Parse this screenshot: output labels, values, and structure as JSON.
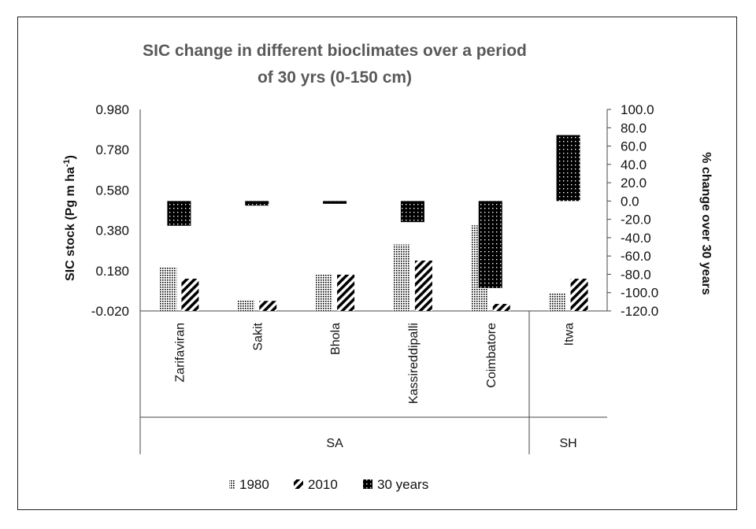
{
  "chart_data": {
    "type": "bar",
    "title_lines": [
      "SIC change in different bioclimates over a period",
      "of 30 yrs (0-150 cm)"
    ],
    "ylabel_left": "SIC stock (Pg m ha",
    "ylabel_left_sup": "-1",
    "ylabel_left_close": ")",
    "ylabel_right": "% change over 30 years",
    "left_axis": {
      "min": -0.02,
      "max": 0.98,
      "ticks": [
        "0.980",
        "0.780",
        "0.580",
        "0.380",
        "0.180",
        "-0.020"
      ],
      "tick_values": [
        0.98,
        0.78,
        0.58,
        0.38,
        0.18,
        -0.02
      ]
    },
    "right_axis": {
      "min": -120,
      "max": 100,
      "ticks": [
        "100.0",
        "80.0",
        "60.0",
        "40.0",
        "20.0",
        "0.0",
        "-20.0",
        "-40.0",
        "-60.0",
        "-80.0",
        "-100.0",
        "-120.0"
      ],
      "tick_values": [
        100,
        80,
        60,
        40,
        20,
        0,
        -20,
        -40,
        -60,
        -80,
        -100,
        -120
      ]
    },
    "categories": [
      "Zarifaviran",
      "Sakit",
      "Bhola",
      "Kassireddipalli",
      "Coimbatore",
      "Itwa"
    ],
    "groups": [
      {
        "label": "SA",
        "categories": [
          "Zarifaviran",
          "Sakit",
          "Bhola",
          "Kassireddipalli",
          "Coimbatore"
        ]
      },
      {
        "label": "SH",
        "categories": [
          "Itwa"
        ]
      }
    ],
    "series": [
      {
        "name": "1980",
        "axis": "left",
        "pattern": "dots",
        "values": [
          0.195,
          0.035,
          0.16,
          0.31,
          0.405,
          0.07
        ]
      },
      {
        "name": "2010",
        "axis": "left",
        "pattern": "diagonal",
        "values": [
          0.14,
          0.03,
          0.16,
          0.23,
          0.015,
          0.14
        ]
      },
      {
        "name": "30 years",
        "axis": "right",
        "pattern": "dense-dots",
        "values": [
          -27,
          -5,
          -3,
          -23,
          -95,
          72
        ]
      }
    ],
    "legend_position": "bottom"
  }
}
